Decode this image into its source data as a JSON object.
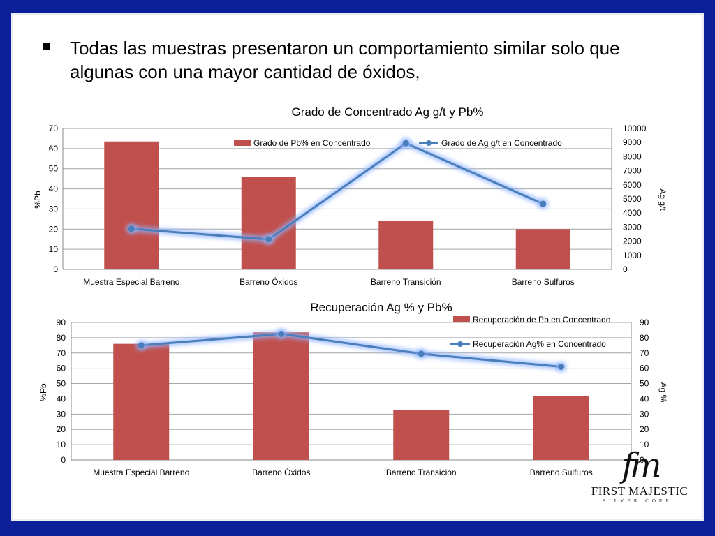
{
  "bullet": {
    "text": "Todas las muestras presentaron un comportamiento similar solo que algunas con una mayor cantidad de óxidos,"
  },
  "colors": {
    "frame": "#0b1f99",
    "bar": "#c0504d",
    "line": "#4a7ebb",
    "glow": "#8fb4ff",
    "grid": "#a6a6a6"
  },
  "chart_data": [
    {
      "type": "bar+line",
      "title": "Grado de Concentrado Ag g/t y Pb%",
      "categories": [
        "Muestra Especial Barreno",
        "Barreno Óxidos",
        "Barreno Transición",
        "Barreno Sulfuros"
      ],
      "series": [
        {
          "name": "Grado de Pb% en Concentrado",
          "type": "bar",
          "axis": "left",
          "values": [
            63.5,
            45.8,
            24.0,
            20.0
          ]
        },
        {
          "name": "Grado de Ag g/t en Concentrado",
          "type": "line",
          "axis": "right",
          "values": [
            2880,
            2130,
            8950,
            4650
          ]
        }
      ],
      "y_left": {
        "label": "%Pb",
        "min": 0,
        "max": 70,
        "ticks": [
          0,
          10,
          20,
          30,
          40,
          50,
          60,
          70
        ]
      },
      "y_right": {
        "label": "Ag g/t",
        "min": 0,
        "max": 10000,
        "ticks": [
          0,
          1000,
          2000,
          3000,
          4000,
          5000,
          6000,
          7000,
          8000,
          9000,
          10000
        ]
      },
      "grid": true,
      "legend_position": "top-center"
    },
    {
      "type": "bar+line",
      "title": "Recuperación Ag % y Pb%",
      "categories": [
        "Muestra Especial Barreno",
        "Barreno Óxidos",
        "Barreno Transición",
        "Barreno Sulfuros"
      ],
      "series": [
        {
          "name": "Recuperación de Pb en Concentrado",
          "type": "bar",
          "axis": "left",
          "values": [
            76.0,
            83.5,
            32.5,
            42.0
          ]
        },
        {
          "name": "Recuperación Ag% en Concentrado",
          "type": "line",
          "axis": "right",
          "values": [
            75.0,
            82.5,
            69.5,
            61.0
          ]
        }
      ],
      "y_left": {
        "label": "%Pb",
        "min": 0,
        "max": 90,
        "ticks": [
          0,
          10,
          20,
          30,
          40,
          50,
          60,
          70,
          80,
          90
        ]
      },
      "y_right": {
        "label": "Ag %",
        "min": 0,
        "max": 90,
        "ticks": [
          0,
          10,
          20,
          30,
          40,
          50,
          60,
          70,
          80,
          90
        ]
      },
      "grid": true,
      "legend_position": "top-right"
    }
  ],
  "logo": {
    "monogram": "fm",
    "name": "FIRST MAJESTIC",
    "sub": "SILVER CORP."
  }
}
